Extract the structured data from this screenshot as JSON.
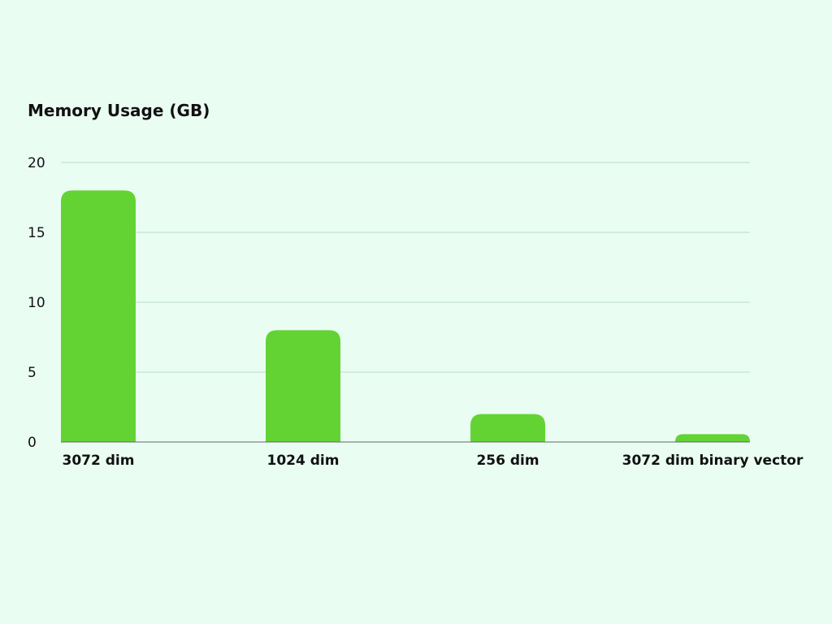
{
  "chart_data": {
    "type": "bar",
    "title": "Memory Usage (GB)",
    "xlabel": "",
    "ylabel": "",
    "categories": [
      "3072 dim",
      "1024 dim",
      "256 dim",
      "3072 dim binary vector"
    ],
    "values": [
      18,
      8,
      2,
      0.56
    ],
    "ylim": [
      0,
      20
    ],
    "yticks": [
      0,
      5,
      10,
      15,
      20
    ],
    "grid": true,
    "legend": "none",
    "colors": {
      "bar": "#63d334",
      "grid": "#b9d9cb",
      "background": "#eafdf3"
    }
  }
}
